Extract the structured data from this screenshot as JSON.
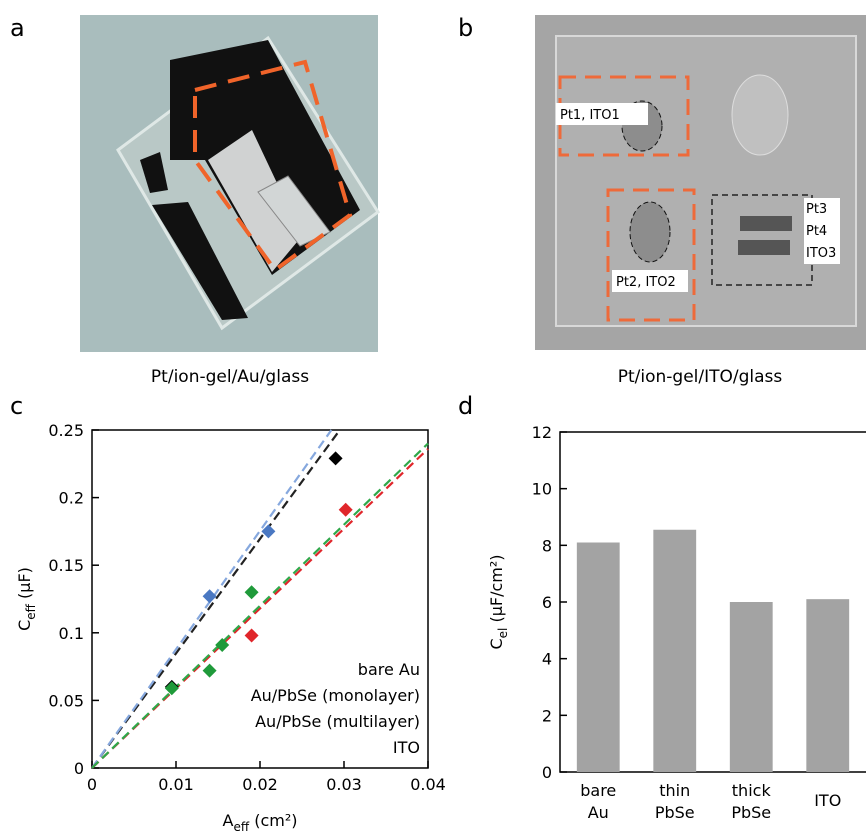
{
  "panels": {
    "a": {
      "label": "a",
      "caption": "Pt/ion-gel/Au/glass"
    },
    "b": {
      "label": "b",
      "caption": "Pt/ion-gel/ITO/glass",
      "annotations": [
        "Pt1, ITO1",
        "Pt2, ITO2",
        "Pt3",
        "Pt4",
        "ITO3"
      ]
    },
    "c": {
      "label": "c"
    },
    "d": {
      "label": "d"
    }
  },
  "chart_data": [
    {
      "type": "scatter",
      "x_label": {
        "main": "A",
        "sub": "eff",
        "unit": " (cm²)"
      },
      "y_label": {
        "main": "C",
        "sub": "eff",
        "unit": " (µF)"
      },
      "xlim": [
        0,
        0.04
      ],
      "xticks": [
        0,
        0.01,
        0.02,
        0.03,
        0.04
      ],
      "ylim": [
        0,
        0.25
      ],
      "yticks": [
        0,
        0.05,
        0.1,
        0.15,
        0.2,
        0.25
      ],
      "series": [
        {
          "name": "bare Au",
          "color": "#000000",
          "fit_color": "#222222",
          "x": [
            0.0095,
            0.029
          ],
          "values": [
            0.06,
            0.229
          ],
          "fit_x": [
            0,
            0.0295
          ],
          "fit_y": [
            0,
            0.25
          ]
        },
        {
          "name": "Au/PbSe (monolayer)",
          "color": "#4a78c2",
          "fit_color": "#86a8de",
          "x": [
            0.014,
            0.021
          ],
          "values": [
            0.127,
            0.175
          ],
          "fit_x": [
            0,
            0.0285
          ],
          "fit_y": [
            0,
            0.25
          ]
        },
        {
          "name": "Au/PbSe (multilayer)",
          "color": "#e0262b",
          "fit_color": "#e0262b",
          "x": [
            0.019,
            0.0302
          ],
          "values": [
            0.098,
            0.191
          ],
          "fit_x": [
            0,
            0.04
          ],
          "fit_y": [
            0,
            0.236
          ]
        },
        {
          "name": "ITO",
          "color": "#1f9a3a",
          "fit_color": "#2fa84a",
          "x": [
            0.0095,
            0.014,
            0.0155,
            0.019
          ],
          "values": [
            0.059,
            0.072,
            0.091,
            0.13
          ],
          "fit_x": [
            0,
            0.04
          ],
          "fit_y": [
            0,
            0.24
          ]
        }
      ]
    },
    {
      "type": "bar",
      "y_label": {
        "main": "C",
        "sub": "el",
        "unit": " (µF/cm²)"
      },
      "categories": [
        [
          "bare",
          "Au"
        ],
        [
          "thin",
          "PbSe"
        ],
        [
          "thick",
          "PbSe"
        ],
        [
          "ITO"
        ]
      ],
      "values": [
        8.1,
        8.55,
        6.0,
        6.1
      ],
      "color": "#a3a3a3",
      "ylim": [
        0,
        12
      ],
      "yticks": [
        0,
        2,
        4,
        6,
        8,
        10,
        12
      ]
    }
  ]
}
